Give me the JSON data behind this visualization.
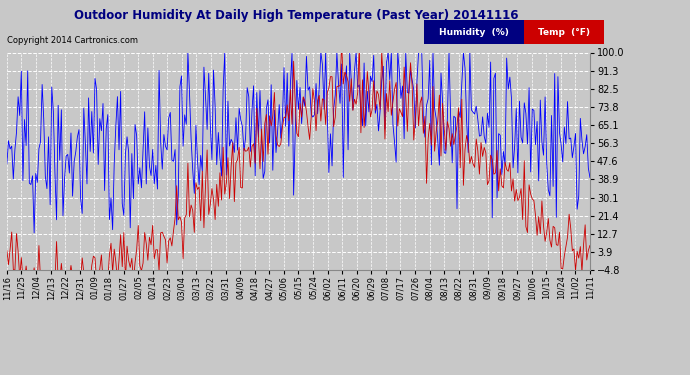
{
  "title": "Outdoor Humidity At Daily High Temperature (Past Year) 20141116",
  "copyright": "Copyright 2014 Cartronics.com",
  "y_ticks": [
    100.0,
    91.3,
    82.5,
    73.8,
    65.1,
    56.3,
    47.6,
    38.9,
    30.1,
    21.4,
    12.7,
    3.9,
    -4.8
  ],
  "y_min": -4.8,
  "y_max": 100.0,
  "x_labels": [
    "11/16",
    "11/25",
    "12/04",
    "12/13",
    "12/22",
    "12/31",
    "01/09",
    "01/18",
    "01/27",
    "02/05",
    "02/14",
    "02/23",
    "03/04",
    "03/13",
    "03/22",
    "03/31",
    "04/09",
    "04/18",
    "04/27",
    "05/06",
    "05/15",
    "05/24",
    "06/02",
    "06/11",
    "06/20",
    "06/29",
    "07/08",
    "07/17",
    "07/26",
    "08/04",
    "08/13",
    "08/22",
    "08/31",
    "09/09",
    "09/18",
    "09/27",
    "10/06",
    "10/15",
    "10/24",
    "11/02",
    "11/11"
  ],
  "bg_color": "#c8c8c8",
  "plot_bg": "#c8c8c8",
  "grid_color": "#ffffff",
  "title_color": "#000080",
  "humidity_legend_bg": "#000080",
  "temp_legend_bg": "#cc0000",
  "legend_text_color": "#ffffff",
  "blue_line_color": "#0000ff",
  "red_line_color": "#cc0000",
  "black_line_color": "#000000",
  "n_points": 365
}
